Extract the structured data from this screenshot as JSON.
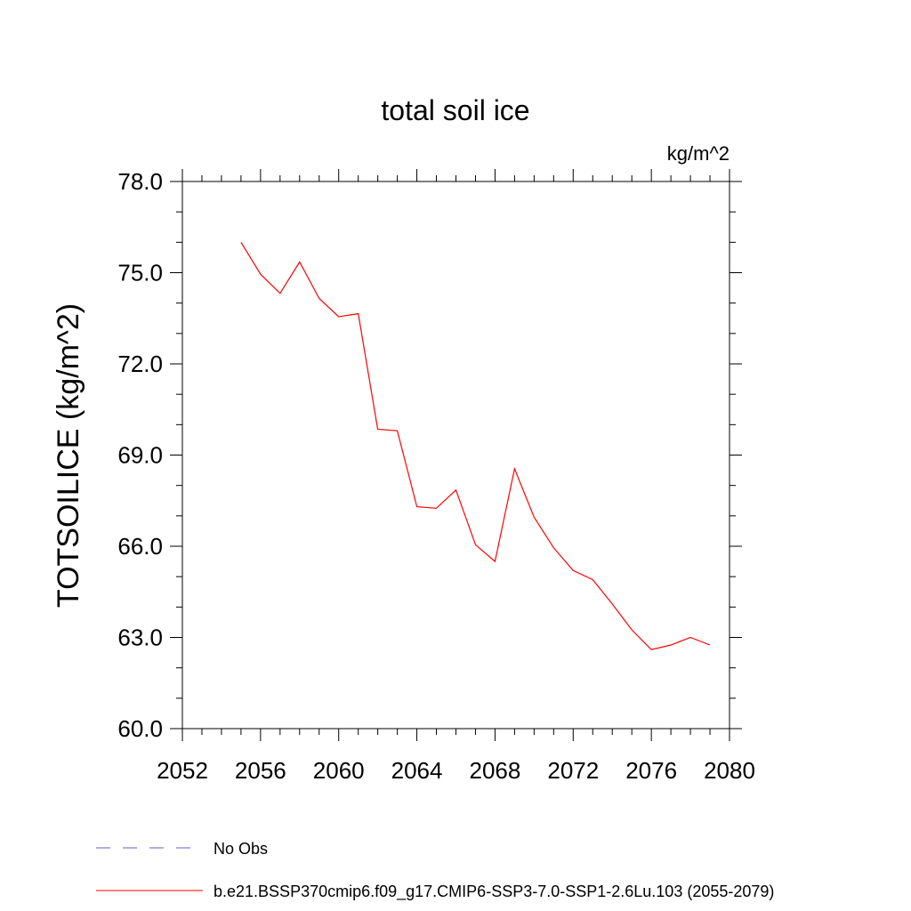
{
  "chart_data": {
    "type": "line",
    "title": "total soil ice",
    "units_label": "kg/m^2",
    "ylabel": "TOTSOILICE  (kg/m^2)",
    "xlabel": "",
    "xlim": [
      2052,
      2080
    ],
    "ylim": [
      60,
      78
    ],
    "x_ticks": [
      "2052",
      "2056",
      "2060",
      "2064",
      "2068",
      "2072",
      "2076",
      "2080"
    ],
    "y_ticks": [
      "60.0",
      "63.0",
      "66.0",
      "69.0",
      "72.0",
      "75.0",
      "78.0"
    ],
    "grid": false,
    "legend_position": "bottom",
    "series": [
      {
        "name": "No Obs",
        "color": "#6a5acd",
        "dash": "dashed",
        "x": [],
        "values": []
      },
      {
        "name": "b.e21.BSSP370cmip6.f09_g17.CMIP6-SSP3-7.0-SSP1-2.6Lu.103 (2055-2079)",
        "color": "#ff0000",
        "dash": "solid",
        "x": [
          2055,
          2056,
          2057,
          2058,
          2059,
          2060,
          2061,
          2062,
          2063,
          2064,
          2065,
          2066,
          2067,
          2068,
          2069,
          2070,
          2071,
          2072,
          2073,
          2074,
          2075,
          2076,
          2077,
          2078,
          2079
        ],
        "values": [
          76.0,
          74.95,
          74.32,
          75.35,
          74.15,
          73.55,
          73.65,
          69.85,
          69.8,
          67.3,
          67.25,
          67.85,
          66.05,
          65.5,
          68.55,
          66.95,
          65.95,
          65.2,
          64.9,
          64.1,
          63.25,
          62.6,
          62.75,
          63.0,
          62.75
        ]
      }
    ]
  }
}
